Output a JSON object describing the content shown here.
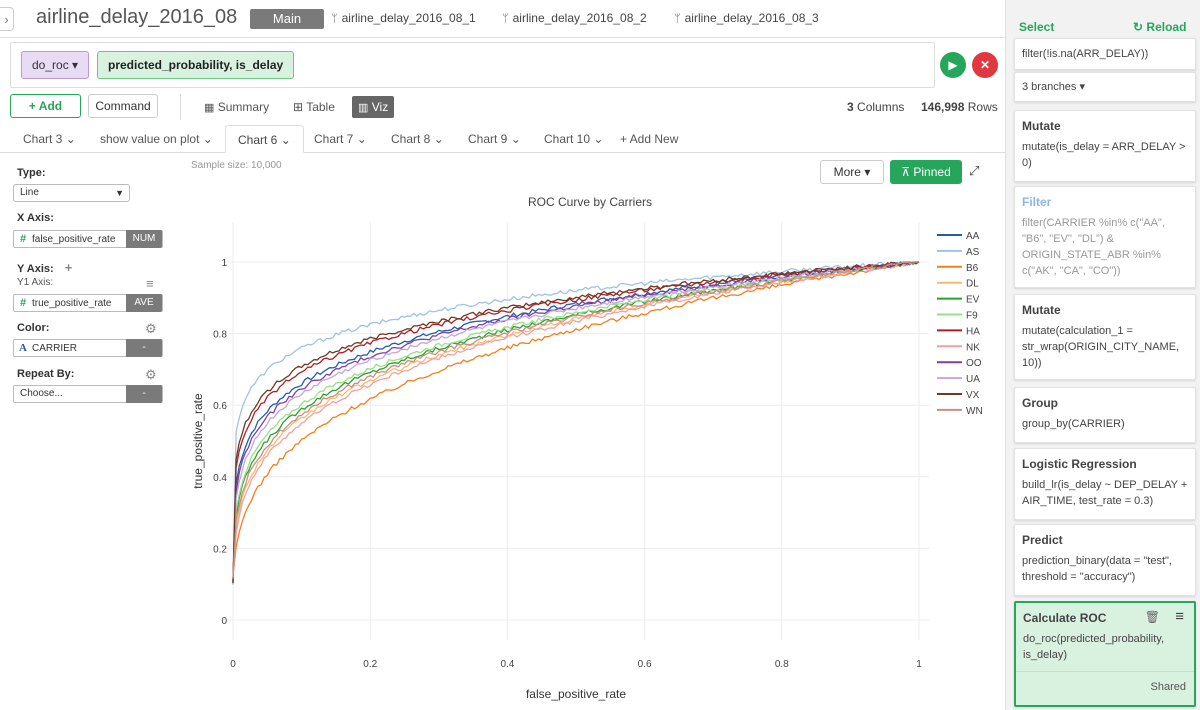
{
  "header": {
    "project_title": "airline_delay_2016_08",
    "branches": [
      "Main",
      "airline_delay_2016_08_1",
      "airline_delay_2016_08_2",
      "airline_delay_2016_08_3"
    ]
  },
  "command": {
    "name": "do_roc",
    "args": "predicted_probability, is_delay"
  },
  "toolbar": {
    "add_label": "Add",
    "command_label": "Command",
    "views": [
      "Summary",
      "Table",
      "Viz"
    ],
    "columns_count": "3",
    "columns_label": "Columns",
    "rows_count": "146,998",
    "rows_label": "Rows"
  },
  "chart_tabs": [
    "Chart 3",
    "show value on plot",
    "Chart 6",
    "Chart 7",
    "Chart 8",
    "Chart 9",
    "Chart 10",
    "+ Add New"
  ],
  "config": {
    "type_label": "Type:",
    "type_value": "Line",
    "x_axis_label": "X Axis:",
    "x_field": "false_positive_rate",
    "x_badge": "NUM",
    "y_axis_label": "Y Axis:",
    "y1_label": "Y1 Axis:",
    "y_field": "true_positive_rate",
    "y_badge": "AVE",
    "color_label": "Color:",
    "color_field": "CARRIER",
    "color_badge": "-",
    "repeat_label": "Repeat By:",
    "repeat_value": "Choose...",
    "repeat_badge": "-"
  },
  "viz": {
    "sample_size": "Sample size: 10,000",
    "more_label": "More",
    "pinned_label": "Pinned"
  },
  "chart_data": {
    "type": "line",
    "title": "ROC Curve by Carriers",
    "xlabel": "false_positive_rate",
    "ylabel": "true_positive_rate",
    "xlim": [
      0,
      1
    ],
    "ylim": [
      0,
      1
    ],
    "xticks": [
      "0",
      "0.2",
      "0.4",
      "0.6",
      "0.8",
      "1"
    ],
    "yticks": [
      "0",
      "0.2",
      "0.4",
      "0.6",
      "0.8",
      "1"
    ],
    "grid": true,
    "legend_position": "right",
    "series": [
      {
        "name": "AA",
        "color": "#1f5fa8",
        "strength": 0.18
      },
      {
        "name": "AS",
        "color": "#9fc3e6",
        "strength": 0.12
      },
      {
        "name": "B6",
        "color": "#f07f1d",
        "strength": 0.3
      },
      {
        "name": "DL",
        "color": "#f7b972",
        "strength": 0.25
      },
      {
        "name": "EV",
        "color": "#2ca02c",
        "strength": 0.23
      },
      {
        "name": "F9",
        "color": "#98df8a",
        "strength": 0.22
      },
      {
        "name": "HA",
        "color": "#b01f24",
        "strength": 0.16
      },
      {
        "name": "NK",
        "color": "#f4a0a0",
        "strength": 0.26
      },
      {
        "name": "OO",
        "color": "#7f3fa0",
        "strength": 0.19
      },
      {
        "name": "UA",
        "color": "#c6a5dc",
        "strength": 0.2
      },
      {
        "name": "VX",
        "color": "#6b3b23",
        "strength": 0.15
      },
      {
        "name": "WN",
        "color": "#c58f84",
        "strength": 0.24
      }
    ]
  },
  "right_panel": {
    "select_label": "Select",
    "reload_label": "Reload",
    "filter_text": "filter(!is.na(ARR_DELAY))",
    "branches_label": "3 branches",
    "steps": [
      {
        "title": "Mutate",
        "body": "mutate(is_delay = ARR_DELAY > 0)"
      },
      {
        "title": "Filter",
        "body": "filter(CARRIER %in% c(\"AA\", \"B6\", \"EV\", \"DL\") & ORIGIN_STATE_ABR %in% c(\"AK\", \"CA\", \"CO\"))"
      },
      {
        "title": "Mutate",
        "body": "mutate(calculation_1 = str_wrap(ORIGIN_CITY_NAME, 10))"
      },
      {
        "title": "Group",
        "body": "group_by(CARRIER)"
      },
      {
        "title": "Logistic Regression",
        "body": "build_lr(is_delay ~ DEP_DELAY + AIR_TIME, test_rate = 0.3)"
      },
      {
        "title": "Predict",
        "body": "prediction_binary(data = \"test\", threshold = \"accuracy\")"
      },
      {
        "title": "Calculate ROC",
        "body": "do_roc(predicted_probability, is_delay)",
        "footer": "Shared"
      }
    ]
  }
}
